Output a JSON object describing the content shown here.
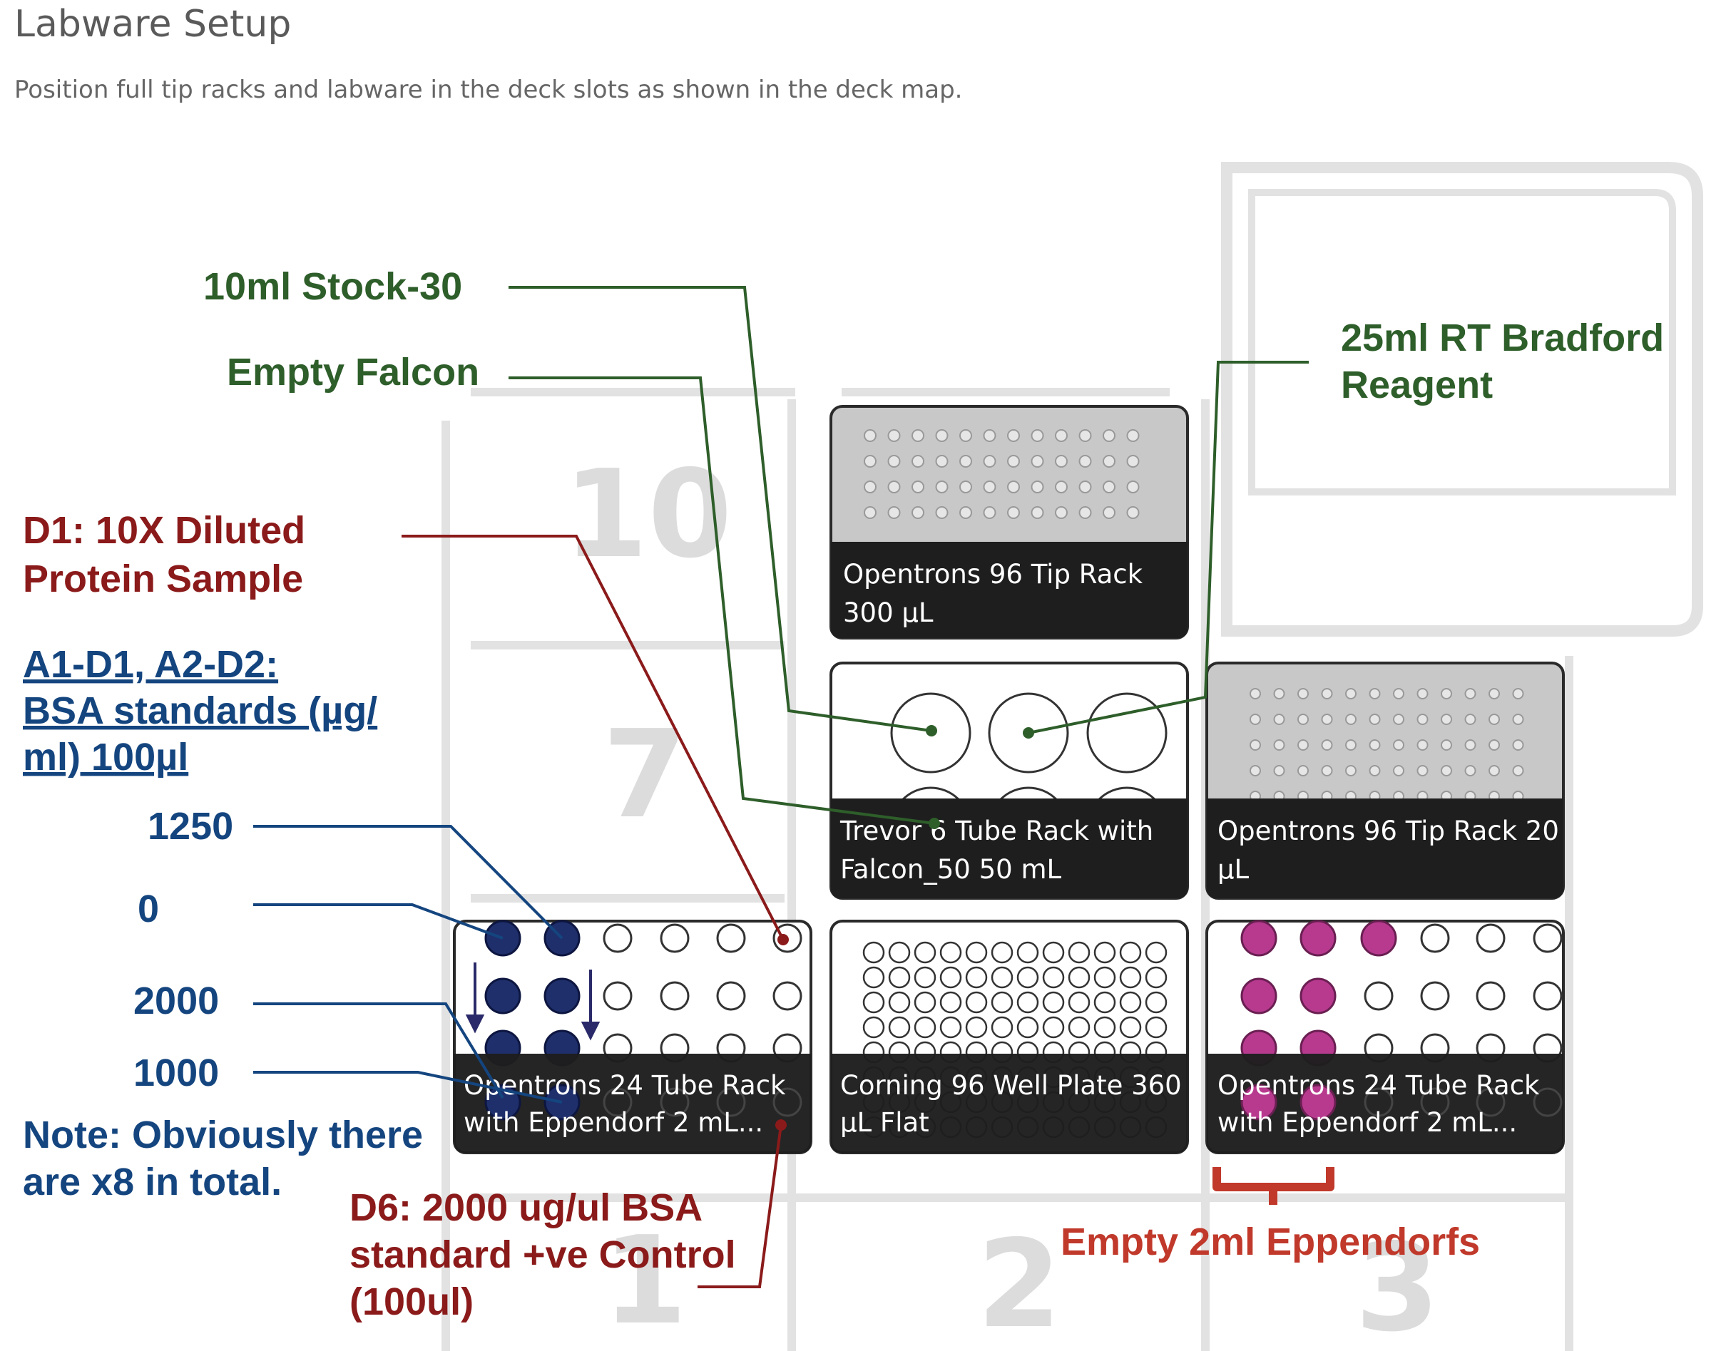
{
  "header": {
    "title": "Labware Setup",
    "subtitle": "Position full tip racks and labware in the deck slots as shown in the deck map."
  },
  "slots": {
    "s10": "10",
    "s7": "7",
    "s1": "1",
    "s2": "2",
    "s3": "3"
  },
  "labware": {
    "tip300": {
      "line1": "Opentrons 96 Tip Rack",
      "line2": "300 µL"
    },
    "falcon": {
      "line1": "Trevor 6 Tube Rack with",
      "line2": "Falcon_50 50 mL"
    },
    "tip20": {
      "line1": "Opentrons 96 Tip Rack 20",
      "line2": "µL"
    },
    "tube24a": {
      "line1": "Opentrons 24 Tube Rack",
      "line2": "with Eppendorf 2 mL..."
    },
    "plate96": {
      "line1": "Corning 96 Well Plate 360",
      "line2": "µL Flat"
    },
    "tube24b": {
      "line1": "Opentrons 24 Tube Rack",
      "line2": "with Eppendorf 2 mL..."
    }
  },
  "annotations": {
    "stock": "10ml Stock-30",
    "empty_falcon": "Empty Falcon",
    "bradford_l1": "25ml RT Bradford",
    "bradford_l2": "Reagent",
    "d1_l1": "D1: 10X Diluted",
    "d1_l2": "Protein Sample",
    "bsa_l1": "A1-D1, A2-D2:",
    "bsa_l2": "BSA standards (µg/",
    "bsa_l3": "ml) 100µl",
    "v1250": "1250",
    "v0": "0",
    "v2000": "2000",
    "v1000": "1000",
    "note_l1": "Note: Obviously there",
    "note_l2": "are x8 in total.",
    "d6_l1": "D6: 2000 ug/ul BSA",
    "d6_l2": "standard +ve Control",
    "d6_l3": "(100ul)",
    "eppendorfs": "Empty 2ml Eppendorfs"
  },
  "colors": {
    "green": "#2e5e2a",
    "dark_red": "#8b1a1a",
    "blue": "#14457f",
    "navy_tube": "#1f2f6b",
    "magenta_tube": "#b83a8f",
    "bracket_red": "#c0392b"
  }
}
